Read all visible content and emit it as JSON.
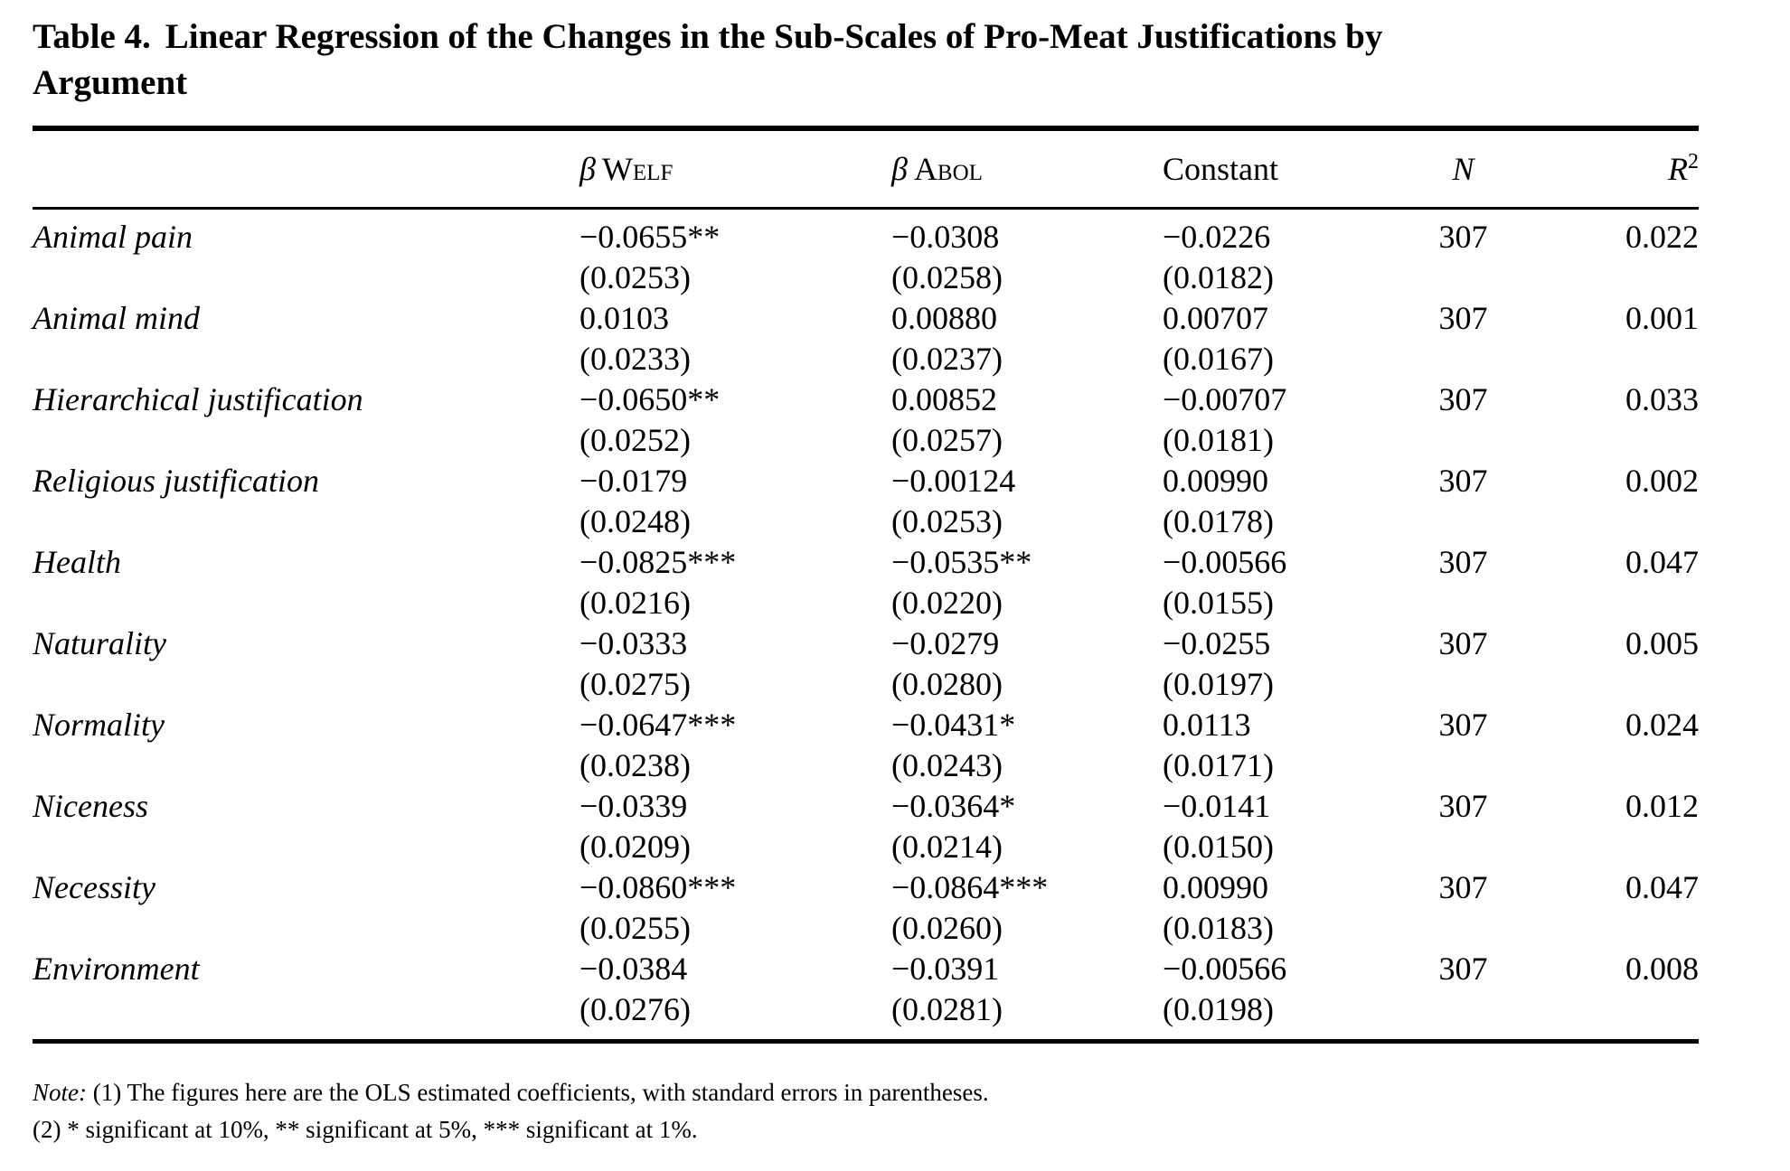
{
  "page": {
    "title_label": "Table 4.",
    "title_text": "Linear Regression of the Changes in the Sub-Scales of Pro-Meat Justifications by Argument"
  },
  "table": {
    "header": {
      "beta_welf": {
        "symbol": "β",
        "name": "Welf"
      },
      "beta_abol": {
        "symbol": "β",
        "name": "Abol"
      },
      "constant": "Constant",
      "n": "N",
      "r2": {
        "base": "R",
        "sup": "2"
      }
    },
    "rows": [
      {
        "label": "Animal pain",
        "welf": "−0.0655**",
        "welf_se": "(0.0253)",
        "abol": "−0.0308",
        "abol_se": "(0.0258)",
        "constant": "−0.0226",
        "constant_se": "(0.0182)",
        "n": "307",
        "r2": "0.022"
      },
      {
        "label": "Animal mind",
        "welf": "0.0103",
        "welf_se": "(0.0233)",
        "abol": "0.00880",
        "abol_se": "(0.0237)",
        "constant": "0.00707",
        "constant_se": "(0.0167)",
        "n": "307",
        "r2": "0.001"
      },
      {
        "label": "Hierarchical justification",
        "welf": "−0.0650**",
        "welf_se": "(0.0252)",
        "abol": "0.00852",
        "abol_se": "(0.0257)",
        "constant": "−0.00707",
        "constant_se": "(0.0181)",
        "n": "307",
        "r2": "0.033"
      },
      {
        "label": "Religious justification",
        "welf": "−0.0179",
        "welf_se": "(0.0248)",
        "abol": "−0.00124",
        "abol_se": "(0.0253)",
        "constant": "0.00990",
        "constant_se": "(0.0178)",
        "n": "307",
        "r2": "0.002"
      },
      {
        "label": "Health",
        "welf": "−0.0825***",
        "welf_se": "(0.0216)",
        "abol": "−0.0535**",
        "abol_se": "(0.0220)",
        "constant": "−0.00566",
        "constant_se": "(0.0155)",
        "n": "307",
        "r2": "0.047"
      },
      {
        "label": "Naturality",
        "welf": "−0.0333",
        "welf_se": "(0.0275)",
        "abol": "−0.0279",
        "abol_se": "(0.0280)",
        "constant": "−0.0255",
        "constant_se": "(0.0197)",
        "n": "307",
        "r2": "0.005"
      },
      {
        "label": "Normality",
        "welf": "−0.0647***",
        "welf_se": "(0.0238)",
        "abol": "−0.0431*",
        "abol_se": "(0.0243)",
        "constant": "0.0113",
        "constant_se": "(0.0171)",
        "n": "307",
        "r2": "0.024"
      },
      {
        "label": "Niceness",
        "welf": "−0.0339",
        "welf_se": "(0.0209)",
        "abol": "−0.0364*",
        "abol_se": "(0.0214)",
        "constant": "−0.0141",
        "constant_se": "(0.0150)",
        "n": "307",
        "r2": "0.012"
      },
      {
        "label": "Necessity",
        "welf": "−0.0860***",
        "welf_se": "(0.0255)",
        "abol": "−0.0864***",
        "abol_se": "(0.0260)",
        "constant": "0.00990",
        "constant_se": "(0.0183)",
        "n": "307",
        "r2": "0.047"
      },
      {
        "label": "Environment",
        "welf": "−0.0384",
        "welf_se": "(0.0276)",
        "abol": "−0.0391",
        "abol_se": "(0.0281)",
        "constant": "−0.00566",
        "constant_se": "(0.0198)",
        "n": "307",
        "r2": "0.008"
      }
    ],
    "notes": {
      "prefix": "Note:",
      "line1": " (1) The figures here are the OLS estimated coefficients, with standard errors in parentheses.",
      "line2": "(2) * significant at 10%, ** significant at 5%, *** significant at 1%."
    }
  }
}
